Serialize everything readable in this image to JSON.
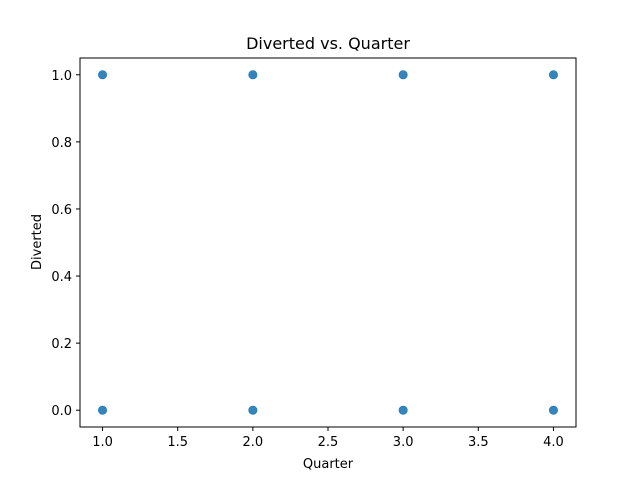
{
  "chart_data": {
    "type": "scatter",
    "title": "Diverted vs. Quarter",
    "xlabel": "Quarter",
    "ylabel": "Diverted",
    "xlim": [
      0.85,
      4.15
    ],
    "ylim": [
      -0.05,
      1.05
    ],
    "xticks": [
      1.0,
      1.5,
      2.0,
      2.5,
      3.0,
      3.5,
      4.0
    ],
    "xtick_labels": [
      "1.0",
      "1.5",
      "2.0",
      "2.5",
      "3.0",
      "3.5",
      "4.0"
    ],
    "yticks": [
      0.0,
      0.2,
      0.4,
      0.6,
      0.8,
      1.0
    ],
    "ytick_labels": [
      "0.0",
      "0.2",
      "0.4",
      "0.6",
      "0.8",
      "1.0"
    ],
    "grid": false,
    "legend": "none",
    "series": [
      {
        "color": "#1f77b4",
        "points": [
          {
            "x": 1,
            "y": 1
          },
          {
            "x": 2,
            "y": 1
          },
          {
            "x": 3,
            "y": 1
          },
          {
            "x": 4,
            "y": 1
          },
          {
            "x": 1,
            "y": 0
          },
          {
            "x": 2,
            "y": 0
          },
          {
            "x": 3,
            "y": 0
          },
          {
            "x": 4,
            "y": 0
          }
        ]
      }
    ]
  }
}
